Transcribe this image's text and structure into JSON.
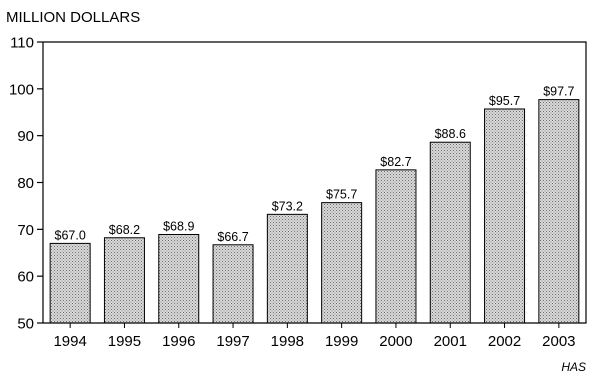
{
  "chart_data": {
    "type": "bar",
    "ylabel": "MILLION DOLLARS",
    "categories": [
      "1994",
      "1995",
      "1996",
      "1997",
      "1998",
      "1999",
      "2000",
      "2001",
      "2002",
      "2003"
    ],
    "values": [
      67.0,
      68.2,
      68.9,
      66.7,
      73.2,
      75.7,
      82.7,
      88.6,
      95.7,
      97.7
    ],
    "data_labels": [
      "$67.0",
      "$68.2",
      "$68.9",
      "$66.7",
      "$73.2",
      "$75.7",
      "$82.7",
      "$88.6",
      "$95.7",
      "$97.7"
    ],
    "ylim": [
      50,
      110
    ],
    "yticks": [
      50,
      60,
      70,
      80,
      90,
      100,
      110
    ],
    "grid": false,
    "bar_fill": "stippled gray",
    "credit": "HAS"
  }
}
